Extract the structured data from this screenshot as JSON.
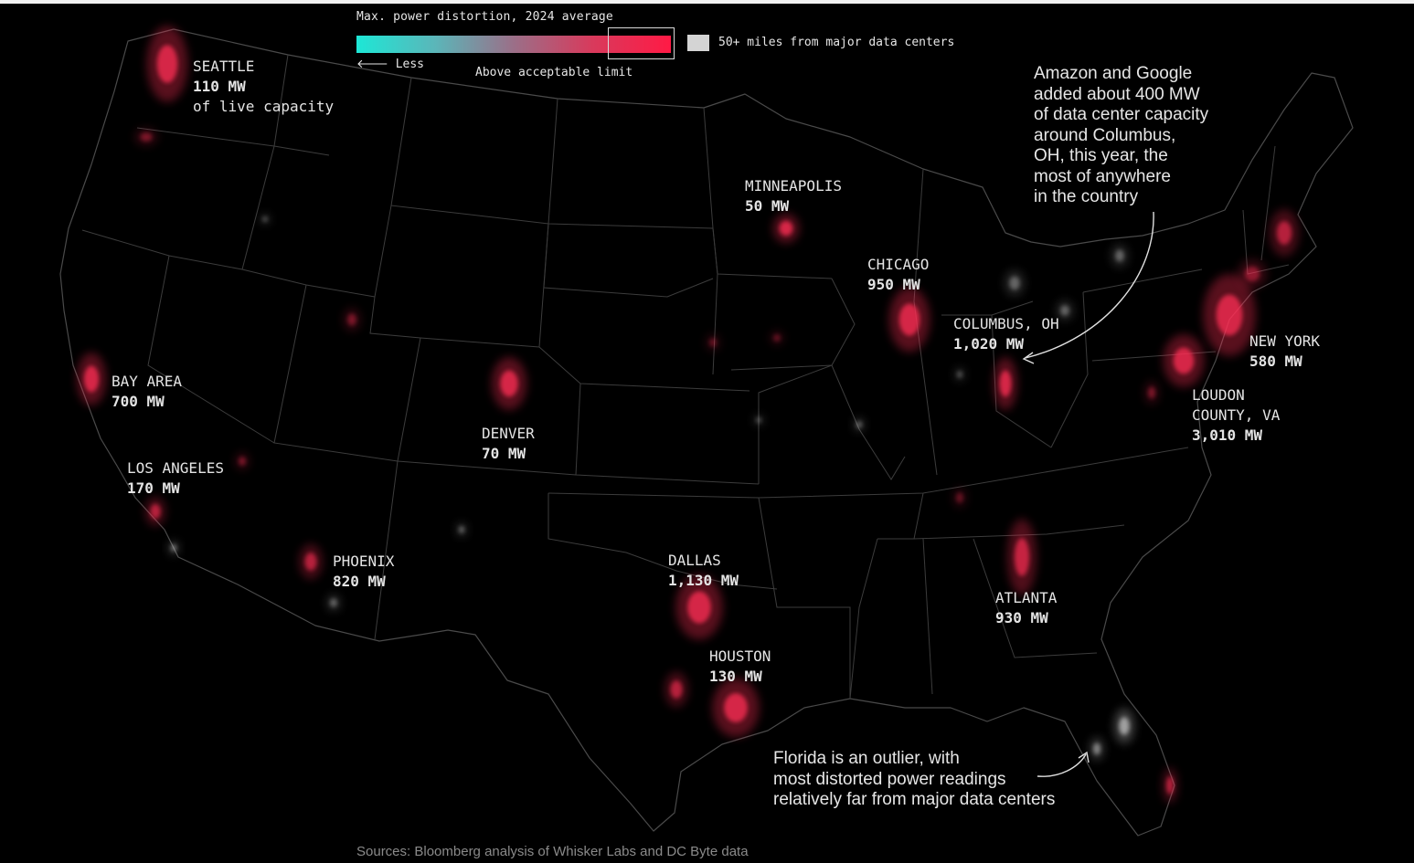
{
  "legend": {
    "title": "Max. power distortion, 2024 average",
    "less_label": "Less",
    "limit_label": "Above acceptable limit",
    "far_label": "50+ miles from major data centers",
    "gradient_colors": [
      "#1de7d6",
      "#ff1a45"
    ],
    "far_color": "#d4d4d4"
  },
  "colors": {
    "hotspot": "#ff2d55",
    "outlier": "#cfcfcf",
    "state_border": "#4a4a4a",
    "background": "#000000"
  },
  "cities": [
    {
      "name": "SEATTLE",
      "mw": "110 MW",
      "extra": "of live capacity"
    },
    {
      "name": "MINNEAPOLIS",
      "mw": "50 MW"
    },
    {
      "name": "CHICAGO",
      "mw": "950 MW"
    },
    {
      "name": "COLUMBUS, OH",
      "mw": "1,020 MW"
    },
    {
      "name": "NEW YORK",
      "mw": "580 MW"
    },
    {
      "name": "LOUDON",
      "name2": "COUNTY, VA",
      "mw": "3,010 MW"
    },
    {
      "name": "BAY AREA",
      "mw": "700 MW"
    },
    {
      "name": "DENVER",
      "mw": "70 MW"
    },
    {
      "name": "LOS ANGELES",
      "mw": "170 MW"
    },
    {
      "name": "PHOENIX",
      "mw": "820 MW"
    },
    {
      "name": "DALLAS",
      "mw": "1,130 MW"
    },
    {
      "name": "ATLANTA",
      "mw": "930 MW"
    },
    {
      "name": "HOUSTON",
      "mw": "130 MW"
    }
  ],
  "annotations": {
    "columbus": [
      "Amazon and Google",
      "added about 400 MW",
      "of data center capacity",
      "around Columbus,",
      "OH, this year, the",
      "most of anywhere",
      "in the country"
    ],
    "florida": [
      "Florida is an outlier, with",
      "most distorted power readings",
      "relatively far from major data centers"
    ]
  },
  "source": "Sources: Bloomberg analysis of Whisker Labs and DC Byte data"
}
